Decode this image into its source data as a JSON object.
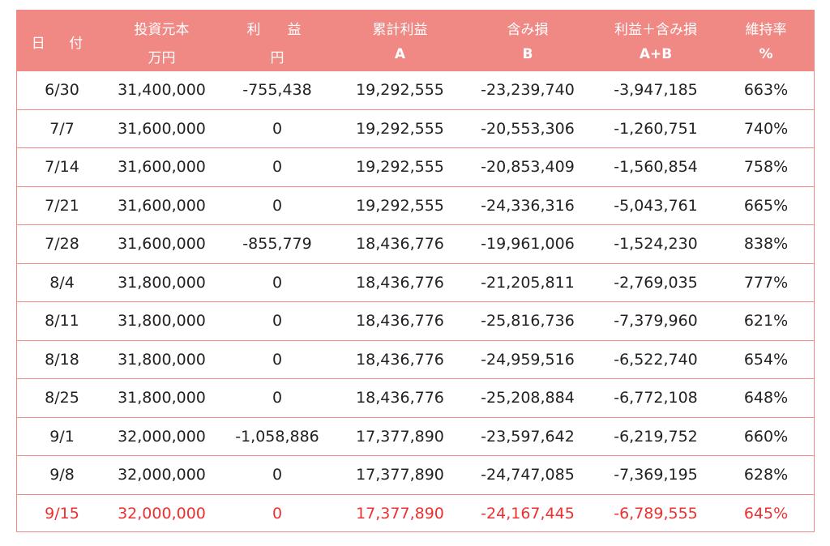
{
  "header": {
    "date": "日 付",
    "principal": {
      "line1": "投資元本",
      "line2": "万円"
    },
    "profit": {
      "line1": "利　益",
      "line2": "円"
    },
    "cumulative": {
      "line1": "累計利益",
      "line2": "A"
    },
    "unrealized": {
      "line1": "含み損",
      "line2": "B"
    },
    "total": {
      "line1": "利益＋含み損",
      "line2": "A+B"
    },
    "ratio": {
      "line1": "維持率",
      "line2": "%"
    }
  },
  "rows": [
    {
      "date": "6/30",
      "principal": "31,400,000",
      "profit": "-755,438",
      "cumulative": "19,292,555",
      "unrealized": "-23,239,740",
      "total": "-3,947,185",
      "ratio": "663%"
    },
    {
      "date": "7/7",
      "principal": "31,600,000",
      "profit": "0",
      "cumulative": "19,292,555",
      "unrealized": "-20,553,306",
      "total": "-1,260,751",
      "ratio": "740%"
    },
    {
      "date": "7/14",
      "principal": "31,600,000",
      "profit": "0",
      "cumulative": "19,292,555",
      "unrealized": "-20,853,409",
      "total": "-1,560,854",
      "ratio": "758%"
    },
    {
      "date": "7/21",
      "principal": "31,600,000",
      "profit": "0",
      "cumulative": "19,292,555",
      "unrealized": "-24,336,316",
      "total": "-5,043,761",
      "ratio": "665%"
    },
    {
      "date": "7/28",
      "principal": "31,600,000",
      "profit": "-855,779",
      "cumulative": "18,436,776",
      "unrealized": "-19,961,006",
      "total": "-1,524,230",
      "ratio": "838%"
    },
    {
      "date": "8/4",
      "principal": "31,800,000",
      "profit": "0",
      "cumulative": "18,436,776",
      "unrealized": "-21,205,811",
      "total": "-2,769,035",
      "ratio": "777%"
    },
    {
      "date": "8/11",
      "principal": "31,800,000",
      "profit": "0",
      "cumulative": "18,436,776",
      "unrealized": "-25,816,736",
      "total": "-7,379,960",
      "ratio": "621%"
    },
    {
      "date": "8/18",
      "principal": "31,800,000",
      "profit": "0",
      "cumulative": "18,436,776",
      "unrealized": "-24,959,516",
      "total": "-6,522,740",
      "ratio": "654%"
    },
    {
      "date": "8/25",
      "principal": "31,800,000",
      "profit": "0",
      "cumulative": "18,436,776",
      "unrealized": "-25,208,884",
      "total": "-6,772,108",
      "ratio": "648%"
    },
    {
      "date": "9/1",
      "principal": "32,000,000",
      "profit": "-1,058,886",
      "cumulative": "17,377,890",
      "unrealized": "-23,597,642",
      "total": "-6,219,752",
      "ratio": "660%"
    },
    {
      "date": "9/8",
      "principal": "32,000,000",
      "profit": "0",
      "cumulative": "17,377,890",
      "unrealized": "-24,747,085",
      "total": "-7,369,195",
      "ratio": "628%"
    },
    {
      "date": "9/15",
      "principal": "32,000,000",
      "profit": "0",
      "cumulative": "17,377,890",
      "unrealized": "-24,167,445",
      "total": "-6,789,555",
      "ratio": "645%",
      "highlight": true
    }
  ],
  "colors": {
    "header_bg": "#f08884",
    "border": "#ef8a86",
    "highlight_text": "#ee3030"
  }
}
